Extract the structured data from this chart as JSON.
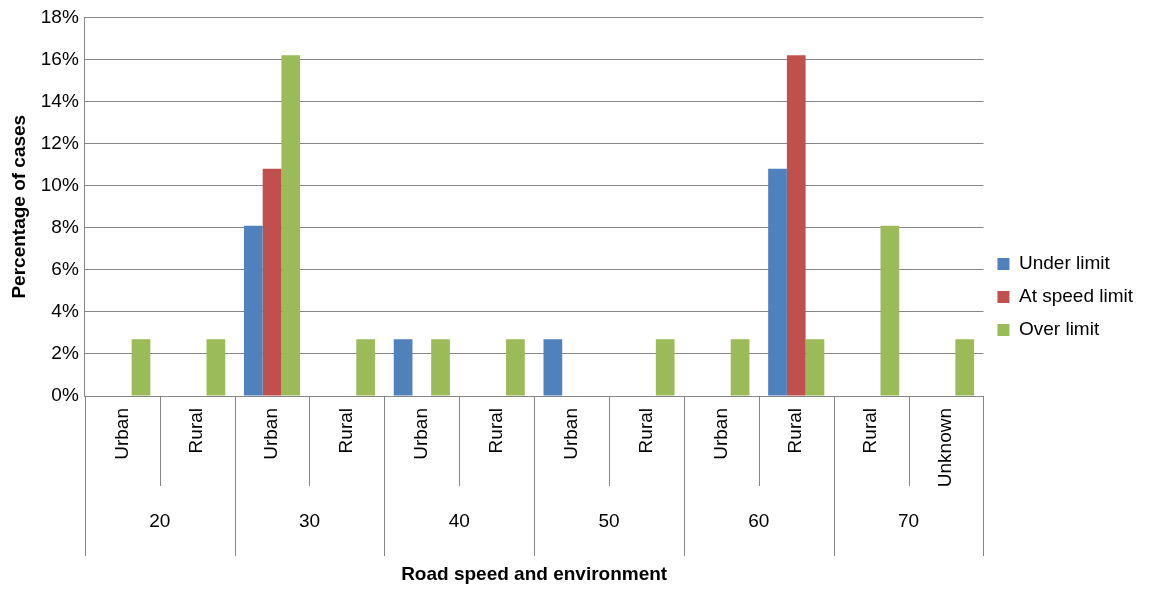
{
  "chart_data": {
    "type": "bar",
    "xlabel": "Road speed and environment",
    "ylabel": "Percentage of cases",
    "categories": [
      "Urban",
      "Rural",
      "Urban",
      "Rural",
      "Urban",
      "Rural",
      "Urban",
      "Rural",
      "Urban",
      "Rural",
      "Rural",
      "Unknown"
    ],
    "annotations": [
      "20",
      "30",
      "40",
      "50",
      "60",
      "70"
    ],
    "series": [
      {
        "name": "Under limit",
        "color": "#4f81bd",
        "values": [
          0,
          0,
          8.1,
          0,
          2.7,
          0,
          2.7,
          0,
          0,
          10.8,
          0,
          0
        ]
      },
      {
        "name": "At speed limit",
        "color": "#c0504d",
        "values": [
          0,
          0,
          10.8,
          0,
          0,
          0,
          0,
          0,
          0,
          16.2,
          0,
          0
        ]
      },
      {
        "name": "Over limit",
        "color": "#9bbb59",
        "values": [
          2.7,
          2.7,
          16.2,
          2.7,
          2.7,
          2.7,
          0,
          2.7,
          2.7,
          2.7,
          8.1,
          2.7
        ]
      }
    ],
    "ylim": [
      0,
      18
    ],
    "yticks": [
      {
        "value": 0,
        "label": "0%"
      },
      {
        "value": 2,
        "label": "2%"
      },
      {
        "value": 4,
        "label": "4%"
      },
      {
        "value": 6,
        "label": "6%"
      },
      {
        "value": 8,
        "label": "8%"
      },
      {
        "value": 10,
        "label": "10%"
      },
      {
        "value": 12,
        "label": "12%"
      },
      {
        "value": 14,
        "label": "14%"
      },
      {
        "value": 16,
        "label": "16%"
      },
      {
        "value": 18,
        "label": "18%"
      }
    ],
    "grid": "y",
    "legend": "right"
  }
}
